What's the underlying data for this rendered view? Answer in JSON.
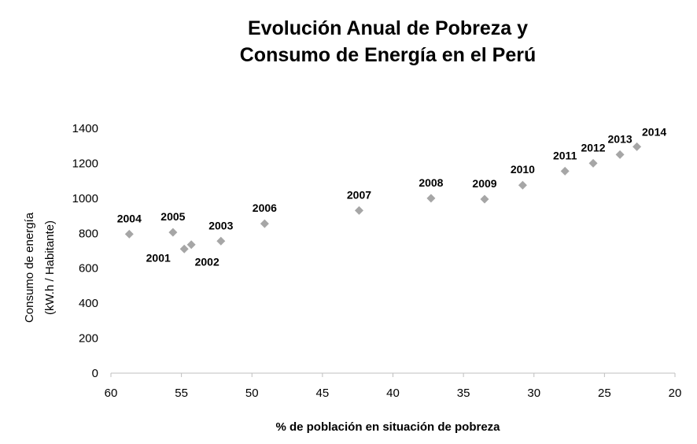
{
  "chart_data": {
    "type": "scatter",
    "title": [
      "Evolución Anual de Pobreza y",
      "Consumo de Energía en el Perú"
    ],
    "xlabel": "% de población en situación de pobreza",
    "ylabel": [
      "Consumo de energía",
      "(kW.h / Habitante)"
    ],
    "xlim": [
      60,
      20
    ],
    "ylim": [
      0,
      1400
    ],
    "x_reversed": true,
    "x_ticks": [
      60,
      55,
      50,
      45,
      40,
      35,
      30,
      25,
      20
    ],
    "y_ticks": [
      0,
      200,
      400,
      600,
      800,
      1000,
      1200,
      1400
    ],
    "grid": false,
    "legend": "none",
    "marker": "diamond",
    "marker_color": "#a6a6a6",
    "points": [
      {
        "label": "2001",
        "x": 54.8,
        "y": 710,
        "label_pos": "below-left"
      },
      {
        "label": "2002",
        "x": 54.3,
        "y": 735,
        "label_pos": "below"
      },
      {
        "label": "2003",
        "x": 52.2,
        "y": 755,
        "label_pos": "above"
      },
      {
        "label": "2004",
        "x": 58.7,
        "y": 795,
        "label_pos": "above"
      },
      {
        "label": "2005",
        "x": 55.6,
        "y": 805,
        "label_pos": "above"
      },
      {
        "label": "2006",
        "x": 49.1,
        "y": 855,
        "label_pos": "above"
      },
      {
        "label": "2007",
        "x": 42.4,
        "y": 930,
        "label_pos": "above"
      },
      {
        "label": "2008",
        "x": 37.3,
        "y": 1000,
        "label_pos": "above"
      },
      {
        "label": "2009",
        "x": 33.5,
        "y": 995,
        "label_pos": "above"
      },
      {
        "label": "2010",
        "x": 30.8,
        "y": 1075,
        "label_pos": "above"
      },
      {
        "label": "2011",
        "x": 27.8,
        "y": 1155,
        "label_pos": "above"
      },
      {
        "label": "2012",
        "x": 25.8,
        "y": 1200,
        "label_pos": "above"
      },
      {
        "label": "2013",
        "x": 23.9,
        "y": 1250,
        "label_pos": "above"
      },
      {
        "label": "2014",
        "x": 22.7,
        "y": 1295,
        "label_pos": "above-right"
      }
    ]
  }
}
